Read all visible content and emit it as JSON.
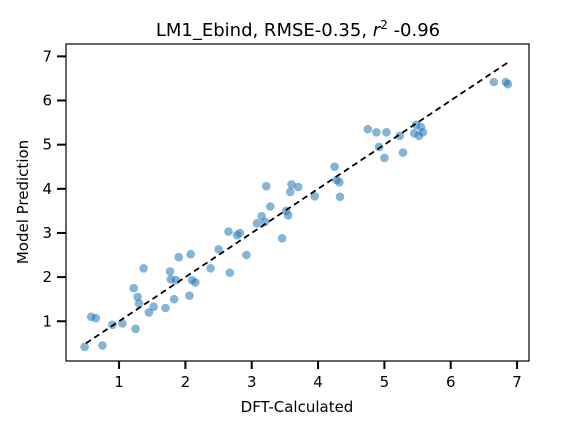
{
  "chart_data": {
    "type": "scatter",
    "title_main": "LM1_Ebind, RMSE-0.35, ",
    "title_r": "r",
    "title_sup": "2",
    "title_tail": " -0.96",
    "xlabel": "DFT-Calculated",
    "ylabel": "Model Prediction",
    "xlim": [
      0.2,
      7.18
    ],
    "ylim": [
      0.1,
      7.28
    ],
    "xticks": [
      "1",
      "2",
      "3",
      "4",
      "5",
      "6",
      "7"
    ],
    "yticks": [
      "1",
      "2",
      "3",
      "4",
      "5",
      "6",
      "7"
    ],
    "point_color": "#1f77b4",
    "fit_line": {
      "x": [
        0.5,
        6.85
      ],
      "y": [
        0.5,
        6.85
      ]
    },
    "points": [
      [
        0.48,
        0.42
      ],
      [
        0.58,
        1.1
      ],
      [
        0.65,
        1.07
      ],
      [
        0.75,
        0.45
      ],
      [
        0.9,
        0.92
      ],
      [
        1.05,
        0.95
      ],
      [
        1.22,
        1.75
      ],
      [
        1.25,
        0.83
      ],
      [
        1.28,
        1.55
      ],
      [
        1.3,
        1.4
      ],
      [
        1.37,
        2.2
      ],
      [
        1.45,
        1.2
      ],
      [
        1.52,
        1.33
      ],
      [
        1.7,
        1.3
      ],
      [
        1.77,
        2.13
      ],
      [
        1.78,
        1.95
      ],
      [
        1.83,
        1.5
      ],
      [
        1.86,
        1.93
      ],
      [
        1.9,
        2.45
      ],
      [
        2.06,
        1.58
      ],
      [
        2.08,
        2.52
      ],
      [
        2.1,
        1.93
      ],
      [
        2.15,
        1.88
      ],
      [
        2.38,
        2.2
      ],
      [
        2.5,
        2.63
      ],
      [
        2.65,
        3.03
      ],
      [
        2.67,
        2.1
      ],
      [
        2.78,
        2.95
      ],
      [
        2.82,
        3.0
      ],
      [
        2.92,
        2.5
      ],
      [
        3.08,
        3.22
      ],
      [
        3.15,
        3.38
      ],
      [
        3.2,
        3.25
      ],
      [
        3.22,
        4.06
      ],
      [
        3.28,
        3.6
      ],
      [
        3.46,
        2.88
      ],
      [
        3.52,
        3.5
      ],
      [
        3.55,
        3.4
      ],
      [
        3.58,
        3.93
      ],
      [
        3.6,
        4.1
      ],
      [
        3.7,
        4.04
      ],
      [
        3.95,
        3.83
      ],
      [
        4.25,
        4.5
      ],
      [
        4.28,
        4.2
      ],
      [
        4.32,
        4.15
      ],
      [
        4.33,
        3.82
      ],
      [
        4.75,
        5.35
      ],
      [
        4.88,
        5.28
      ],
      [
        4.92,
        4.95
      ],
      [
        5.0,
        4.7
      ],
      [
        5.03,
        5.28
      ],
      [
        5.23,
        5.2
      ],
      [
        5.28,
        4.82
      ],
      [
        5.45,
        5.26
      ],
      [
        5.48,
        5.45
      ],
      [
        5.52,
        5.2
      ],
      [
        5.55,
        5.4
      ],
      [
        5.58,
        5.28
      ],
      [
        6.65,
        6.42
      ],
      [
        6.83,
        6.42
      ],
      [
        6.86,
        6.37
      ]
    ]
  }
}
